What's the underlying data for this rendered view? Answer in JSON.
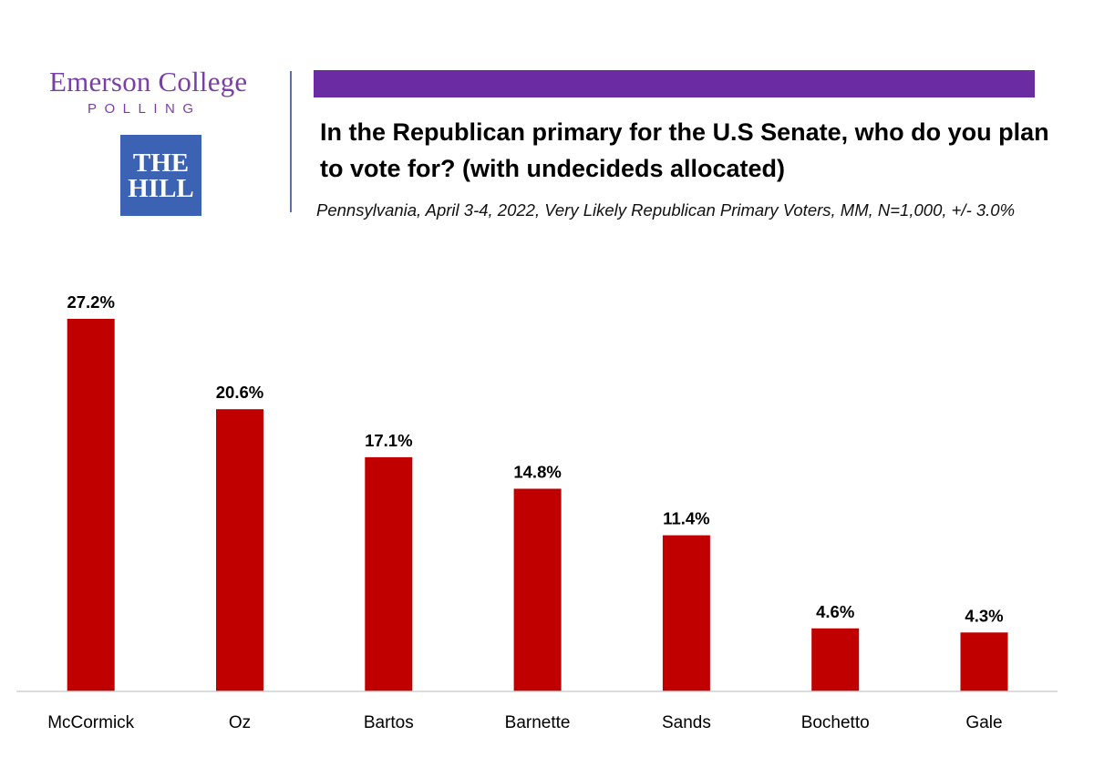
{
  "branding": {
    "pollster_name": "Emerson College",
    "pollster_sub": "POLLING",
    "partner_line1": "THE",
    "partner_line2": "HILL"
  },
  "colors": {
    "brand_purple": "#7a3fa6",
    "accent_bar": "#6a2ba3",
    "partner_blue": "#3b62b3",
    "bar_red": "#c00000"
  },
  "chart_data": {
    "type": "bar",
    "title": "In the Republican primary for the U.S Senate, who do you plan to vote for? (with undecideds allocated)",
    "subtitle": "Pennsylvania, April 3-4, 2022, Very Likely Republican Primary Voters, MM, N=1,000, +/- 3.0%",
    "categories": [
      "McCormick",
      "Oz",
      "Bartos",
      "Barnette",
      "Sands",
      "Bochetto",
      "Gale"
    ],
    "values": [
      27.2,
      20.6,
      17.1,
      14.8,
      11.4,
      4.6,
      4.3
    ],
    "value_labels": [
      "27.2%",
      "20.6%",
      "17.1%",
      "14.8%",
      "11.4%",
      "4.6%",
      "4.3%"
    ],
    "xlabel": "",
    "ylabel": "",
    "ylim": [
      0,
      27.2
    ],
    "grid": false,
    "legend": "none"
  }
}
